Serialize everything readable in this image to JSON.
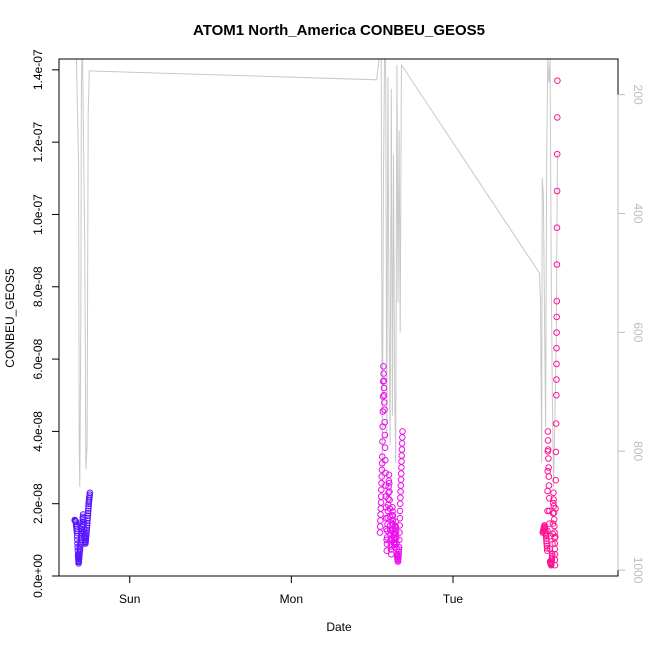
{
  "chart_data": {
    "type": "scatter",
    "title": "ATOM1 North_America CONBEU_GEOS5",
    "xlabel": "Date",
    "ylabel": "CONBEU_GEOS5",
    "x_ticks": [
      "Sun",
      "Mon",
      "Tue"
    ],
    "x_tick_dates": [
      "2016-08-07",
      "2016-08-08",
      "2016-08-09"
    ],
    "xlim": [
      "2016-08-06 13:30",
      "2016-08-10 00:30"
    ],
    "ylim": [
      0,
      1.43e-07
    ],
    "y_ticks": [
      "0.0e+00",
      "2.0e-08",
      "4.0e-08",
      "6.0e-08",
      "8.0e-08",
      "1.0e-07",
      "1.2e-07",
      "1.4e-07"
    ],
    "y_tick_values": [
      0,
      2e-08,
      4e-08,
      6e-08,
      8e-08,
      1e-07,
      1.2e-07,
      1.4e-07
    ],
    "y2_ticks": [
      "200",
      "400",
      "600",
      "800",
      "1000"
    ],
    "y2_tick_values": [
      200,
      400,
      600,
      800,
      1000
    ],
    "y2lim": [
      1010,
      140
    ],
    "grid": false,
    "colors": {
      "line": "#c8c8c8",
      "series_1": "#5b17ff",
      "series_2": "#ee10ee",
      "series_3": "#ff1493",
      "axis": "#000000",
      "secondary_axis": "#bdbdbd"
    },
    "series": [
      {
        "marker": "open-circle",
        "color": "#5b17ff",
        "points": [
          [
            "2016-08-06 15:50",
            1.55e-08
          ],
          [
            "2016-08-06 16:00",
            1.5e-08
          ],
          [
            "2016-08-06 16:10",
            1.2e-08
          ],
          [
            "2016-08-06 16:20",
            6e-09
          ],
          [
            "2016-08-06 16:25",
            3.5e-09
          ],
          [
            "2016-08-06 16:35",
            7e-09
          ],
          [
            "2016-08-06 16:45",
            1e-08
          ],
          [
            "2016-08-06 16:55",
            1.3e-08
          ],
          [
            "2016-08-06 17:05",
            1.7e-08
          ],
          [
            "2016-08-06 17:15",
            1.1e-08
          ],
          [
            "2016-08-06 17:25",
            9e-09
          ],
          [
            "2016-08-06 17:35",
            1.2e-08
          ],
          [
            "2016-08-06 17:45",
            1.6e-08
          ],
          [
            "2016-08-06 17:55",
            2e-08
          ],
          [
            "2016-08-06 18:05",
            2.3e-08
          ]
        ]
      },
      {
        "marker": "open-circle",
        "color": "#ee10ee",
        "points": [
          [
            "2016-08-08 13:10",
            1.2e-08
          ],
          [
            "2016-08-08 13:20",
            2.2e-08
          ],
          [
            "2016-08-08 13:30",
            3.3e-08
          ],
          [
            "2016-08-08 13:40",
            5.8e-08
          ],
          [
            "2016-08-08 13:50",
            4.6e-08
          ],
          [
            "2016-08-08 14:00",
            2.5e-08
          ],
          [
            "2016-08-08 14:10",
            7e-09
          ],
          [
            "2016-08-08 14:20",
            1.8e-08
          ],
          [
            "2016-08-08 14:30",
            2.8e-08
          ],
          [
            "2016-08-08 14:40",
            1.4e-08
          ],
          [
            "2016-08-08 14:50",
            6e-09
          ],
          [
            "2016-08-08 15:00",
            1.9e-08
          ],
          [
            "2016-08-08 15:10",
            1.2e-08
          ],
          [
            "2016-08-08 15:20",
            8e-09
          ],
          [
            "2016-08-08 15:30",
            1.5e-08
          ],
          [
            "2016-08-08 15:40",
            6e-09
          ],
          [
            "2016-08-08 15:50",
            4e-09
          ],
          [
            "2016-08-08 16:00",
            8e-09
          ],
          [
            "2016-08-08 16:10",
            2e-08
          ],
          [
            "2016-08-08 16:20",
            3e-08
          ],
          [
            "2016-08-08 16:30",
            4e-08
          ]
        ]
      },
      {
        "marker": "open-circle",
        "color": "#ff1493",
        "points": [
          [
            "2016-08-09 13:20",
            1.2e-08
          ],
          [
            "2016-08-09 13:35",
            1.4e-08
          ],
          [
            "2016-08-09 13:50",
            1.1e-08
          ],
          [
            "2016-08-09 14:00",
            7e-09
          ],
          [
            "2016-08-09 14:05",
            4e-08
          ],
          [
            "2016-08-09 14:15",
            2.5e-08
          ],
          [
            "2016-08-09 14:25",
            4e-09
          ],
          [
            "2016-08-09 14:35",
            3e-09
          ],
          [
            "2016-08-09 14:45",
            6e-09
          ],
          [
            "2016-08-09 14:55",
            2.3e-08
          ],
          [
            "2016-08-09 15:05",
            1.2e-08
          ],
          [
            "2016-08-09 15:10",
            3e-09
          ],
          [
            "2016-08-09 15:20",
            5e-08
          ],
          [
            "2016-08-09 15:25",
            7.6e-08
          ],
          [
            "2016-08-09 15:30",
            1.37e-07
          ]
        ]
      }
    ],
    "secondary_line": {
      "color": "#c8c8c8",
      "y_axis": "right",
      "points": [
        [
          "2016-08-06 15:30",
          0
        ],
        [
          "2016-08-06 16:05",
          0
        ],
        [
          "2016-08-06 16:25",
          320
        ],
        [
          "2016-08-06 16:30",
          790
        ],
        [
          "2016-08-06 16:35",
          860
        ],
        [
          "2016-08-06 16:45",
          560
        ],
        [
          "2016-08-06 16:50",
          180
        ],
        [
          "2016-08-06 16:55",
          0
        ],
        [
          "2016-08-06 17:00",
          0
        ],
        [
          "2016-08-06 17:20",
          460
        ],
        [
          "2016-08-06 17:30",
          830
        ],
        [
          "2016-08-06 17:40",
          790
        ],
        [
          "2016-08-06 17:50",
          230
        ],
        [
          "2016-08-06 18:00",
          160
        ],
        [
          "2016-08-08 12:40",
          175
        ],
        [
          "2016-08-08 13:00",
          130
        ],
        [
          "2016-08-08 13:20",
          0
        ],
        [
          "2016-08-08 13:30",
          860
        ],
        [
          "2016-08-08 13:40",
          360
        ],
        [
          "2016-08-08 13:50",
          130
        ],
        [
          "2016-08-08 14:00",
          80
        ],
        [
          "2016-08-08 14:10",
          780
        ],
        [
          "2016-08-08 14:20",
          170
        ],
        [
          "2016-08-08 14:30",
          560
        ],
        [
          "2016-08-08 14:40",
          790
        ],
        [
          "2016-08-08 14:50",
          190
        ],
        [
          "2016-08-08 15:00",
          740
        ],
        [
          "2016-08-08 15:10",
          300
        ],
        [
          "2016-08-08 15:20",
          690
        ],
        [
          "2016-08-08 15:30",
          820
        ],
        [
          "2016-08-08 15:40",
          150
        ],
        [
          "2016-08-08 15:50",
          550
        ],
        [
          "2016-08-08 16:00",
          260
        ],
        [
          "2016-08-08 16:10",
          600
        ],
        [
          "2016-08-08 16:20",
          150
        ],
        [
          "2016-08-09 12:50",
          500
        ],
        [
          "2016-08-09 13:00",
          545
        ],
        [
          "2016-08-09 13:10",
          820
        ],
        [
          "2016-08-09 13:15",
          340
        ],
        [
          "2016-08-09 13:25",
          370
        ],
        [
          "2016-08-09 13:35",
          570
        ],
        [
          "2016-08-09 13:45",
          760
        ],
        [
          "2016-08-09 13:55",
          300
        ],
        [
          "2016-08-09 14:05",
          60
        ],
        [
          "2016-08-09 14:15",
          180
        ],
        [
          "2016-08-09 14:25",
          120
        ],
        [
          "2016-08-09 14:35",
          490
        ],
        [
          "2016-08-09 14:45",
          700
        ],
        [
          "2016-08-09 14:55",
          860
        ],
        [
          "2016-08-09 15:05",
          770
        ],
        [
          "2016-08-09 15:20",
          610
        ],
        [
          "2016-08-09 15:30",
          300
        ]
      ]
    }
  }
}
